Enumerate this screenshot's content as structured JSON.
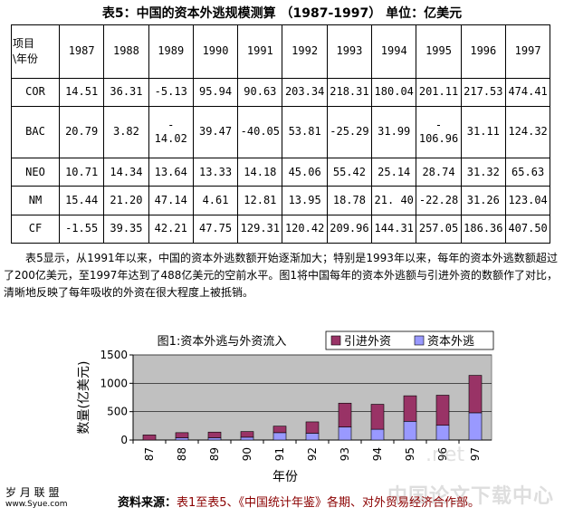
{
  "title": "表5：中国的资本外逃规模测算 （1987-1997） 单位：亿美元",
  "table": {
    "corner_top": "项目",
    "corner_bottom": "\\年份",
    "years": [
      "1987",
      "1988",
      "1989",
      "1990",
      "1991",
      "1992",
      "1993",
      "1994",
      "1995",
      "1996",
      "1997"
    ],
    "rows": [
      {
        "label": "COR",
        "values": [
          "14.51",
          "36.31",
          "-5.13",
          "95.94",
          "90.63",
          "203.34",
          "218.31",
          "180.04",
          "201.11",
          "217.53",
          "474.41"
        ]
      },
      {
        "label": "BAC",
        "values": [
          "20.79",
          "3.82",
          "-\n14.02",
          "39.47",
          "-40.05",
          "53.81",
          "-25.29",
          "31.99",
          "-\n106.96",
          "31.11",
          "124.32"
        ]
      },
      {
        "label": "NEO",
        "values": [
          "10.71",
          "14.34",
          "13.64",
          "13.33",
          "14.18",
          "45.06",
          "55.42",
          "25.14",
          "28.74",
          "31.32",
          "65.63"
        ]
      },
      {
        "label": "NM",
        "values": [
          "15.44",
          "21.20",
          "47.14",
          "4.61",
          "12.81",
          "13.95",
          "18.78",
          "21. 40",
          "-22.28",
          "31.26",
          "123.04"
        ]
      },
      {
        "label": "CF",
        "values": [
          "-1.55",
          "39.35",
          "42.21",
          "47.75",
          "129.31",
          "120.42",
          "209.96",
          "144.31",
          "257.05",
          "186.36",
          "407.50"
        ]
      }
    ]
  },
  "paragraph": "表5显示，从1991年以来，中国的资本外逃数额开始逐渐加大；特别是1993年以来，每年的资本外逃数额超过了200亿美元，至1997年达到了488亿美元的空前水平。图1将中国每年的资本外逃额与引进外资的数额作了对比，清晰地反映了每年吸收的外资在很大程度上被抵销。",
  "chart_data": {
    "type": "bar",
    "stacked": true,
    "title": "图1:资本外逃与外资流入",
    "xlabel": "年份",
    "ylabel": "数量(亿美元)",
    "categories": [
      "87",
      "88",
      "89",
      "90",
      "91",
      "92",
      "93",
      "94",
      "95",
      "96",
      "97"
    ],
    "ylim": [
      0,
      1500
    ],
    "yticks": [
      "0",
      "500",
      "1000",
      "1500"
    ],
    "series": [
      {
        "name": "资本外逃",
        "color": "#9999ff",
        "values": [
          0,
          40,
          40,
          50,
          130,
          120,
          230,
          190,
          330,
          260,
          480
        ]
      },
      {
        "name": "引进外资",
        "color": "#993366",
        "values": [
          90,
          90,
          100,
          100,
          115,
          200,
          420,
          440,
          450,
          530,
          660
        ]
      }
    ],
    "legend_order": [
      "引进外资",
      "资本外逃"
    ],
    "legend_position": "top-right",
    "plot_background": "#c0c0c0"
  },
  "source": {
    "label": "资料来源：",
    "text": "表1至表5、《中国统计年鉴》各期、对外贸易经济合作部。"
  },
  "watermarks": {
    "left_top": "岁 月 联 盟",
    "left_bottom": "www.Syue.com",
    "url": ".net",
    "right": "中国论文下载中心"
  }
}
